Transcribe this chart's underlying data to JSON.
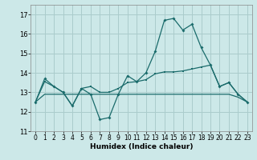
{
  "xlabel": "Humidex (Indice chaleur)",
  "background_color": "#cce8e8",
  "grid_color": "#aacccc",
  "line_color": "#1a6b6b",
  "xlim": [
    -0.5,
    23.5
  ],
  "ylim": [
    11,
    17.5
  ],
  "yticks": [
    11,
    12,
    13,
    14,
    15,
    16,
    17
  ],
  "xticks": [
    0,
    1,
    2,
    3,
    4,
    5,
    6,
    7,
    8,
    9,
    10,
    11,
    12,
    13,
    14,
    15,
    16,
    17,
    18,
    19,
    20,
    21,
    22,
    23
  ],
  "series1": [
    12.5,
    13.7,
    13.3,
    13.0,
    12.3,
    13.2,
    12.9,
    11.6,
    11.7,
    12.9,
    13.85,
    13.55,
    14.0,
    15.1,
    16.7,
    16.8,
    16.2,
    16.5,
    15.3,
    14.4,
    13.3,
    13.5,
    12.9,
    12.5
  ],
  "series2": [
    12.5,
    13.55,
    13.3,
    13.0,
    12.3,
    13.2,
    13.3,
    13.0,
    13.0,
    13.2,
    13.5,
    13.55,
    13.65,
    13.95,
    14.05,
    14.05,
    14.1,
    14.2,
    14.3,
    14.4,
    13.3,
    13.5,
    12.9,
    12.5
  ],
  "series3": [
    12.5,
    12.9,
    12.9,
    12.9,
    12.9,
    12.9,
    12.9,
    12.9,
    12.9,
    12.9,
    12.9,
    12.9,
    12.9,
    12.9,
    12.9,
    12.9,
    12.9,
    12.9,
    12.9,
    12.9,
    12.9,
    12.9,
    12.75,
    12.5
  ]
}
